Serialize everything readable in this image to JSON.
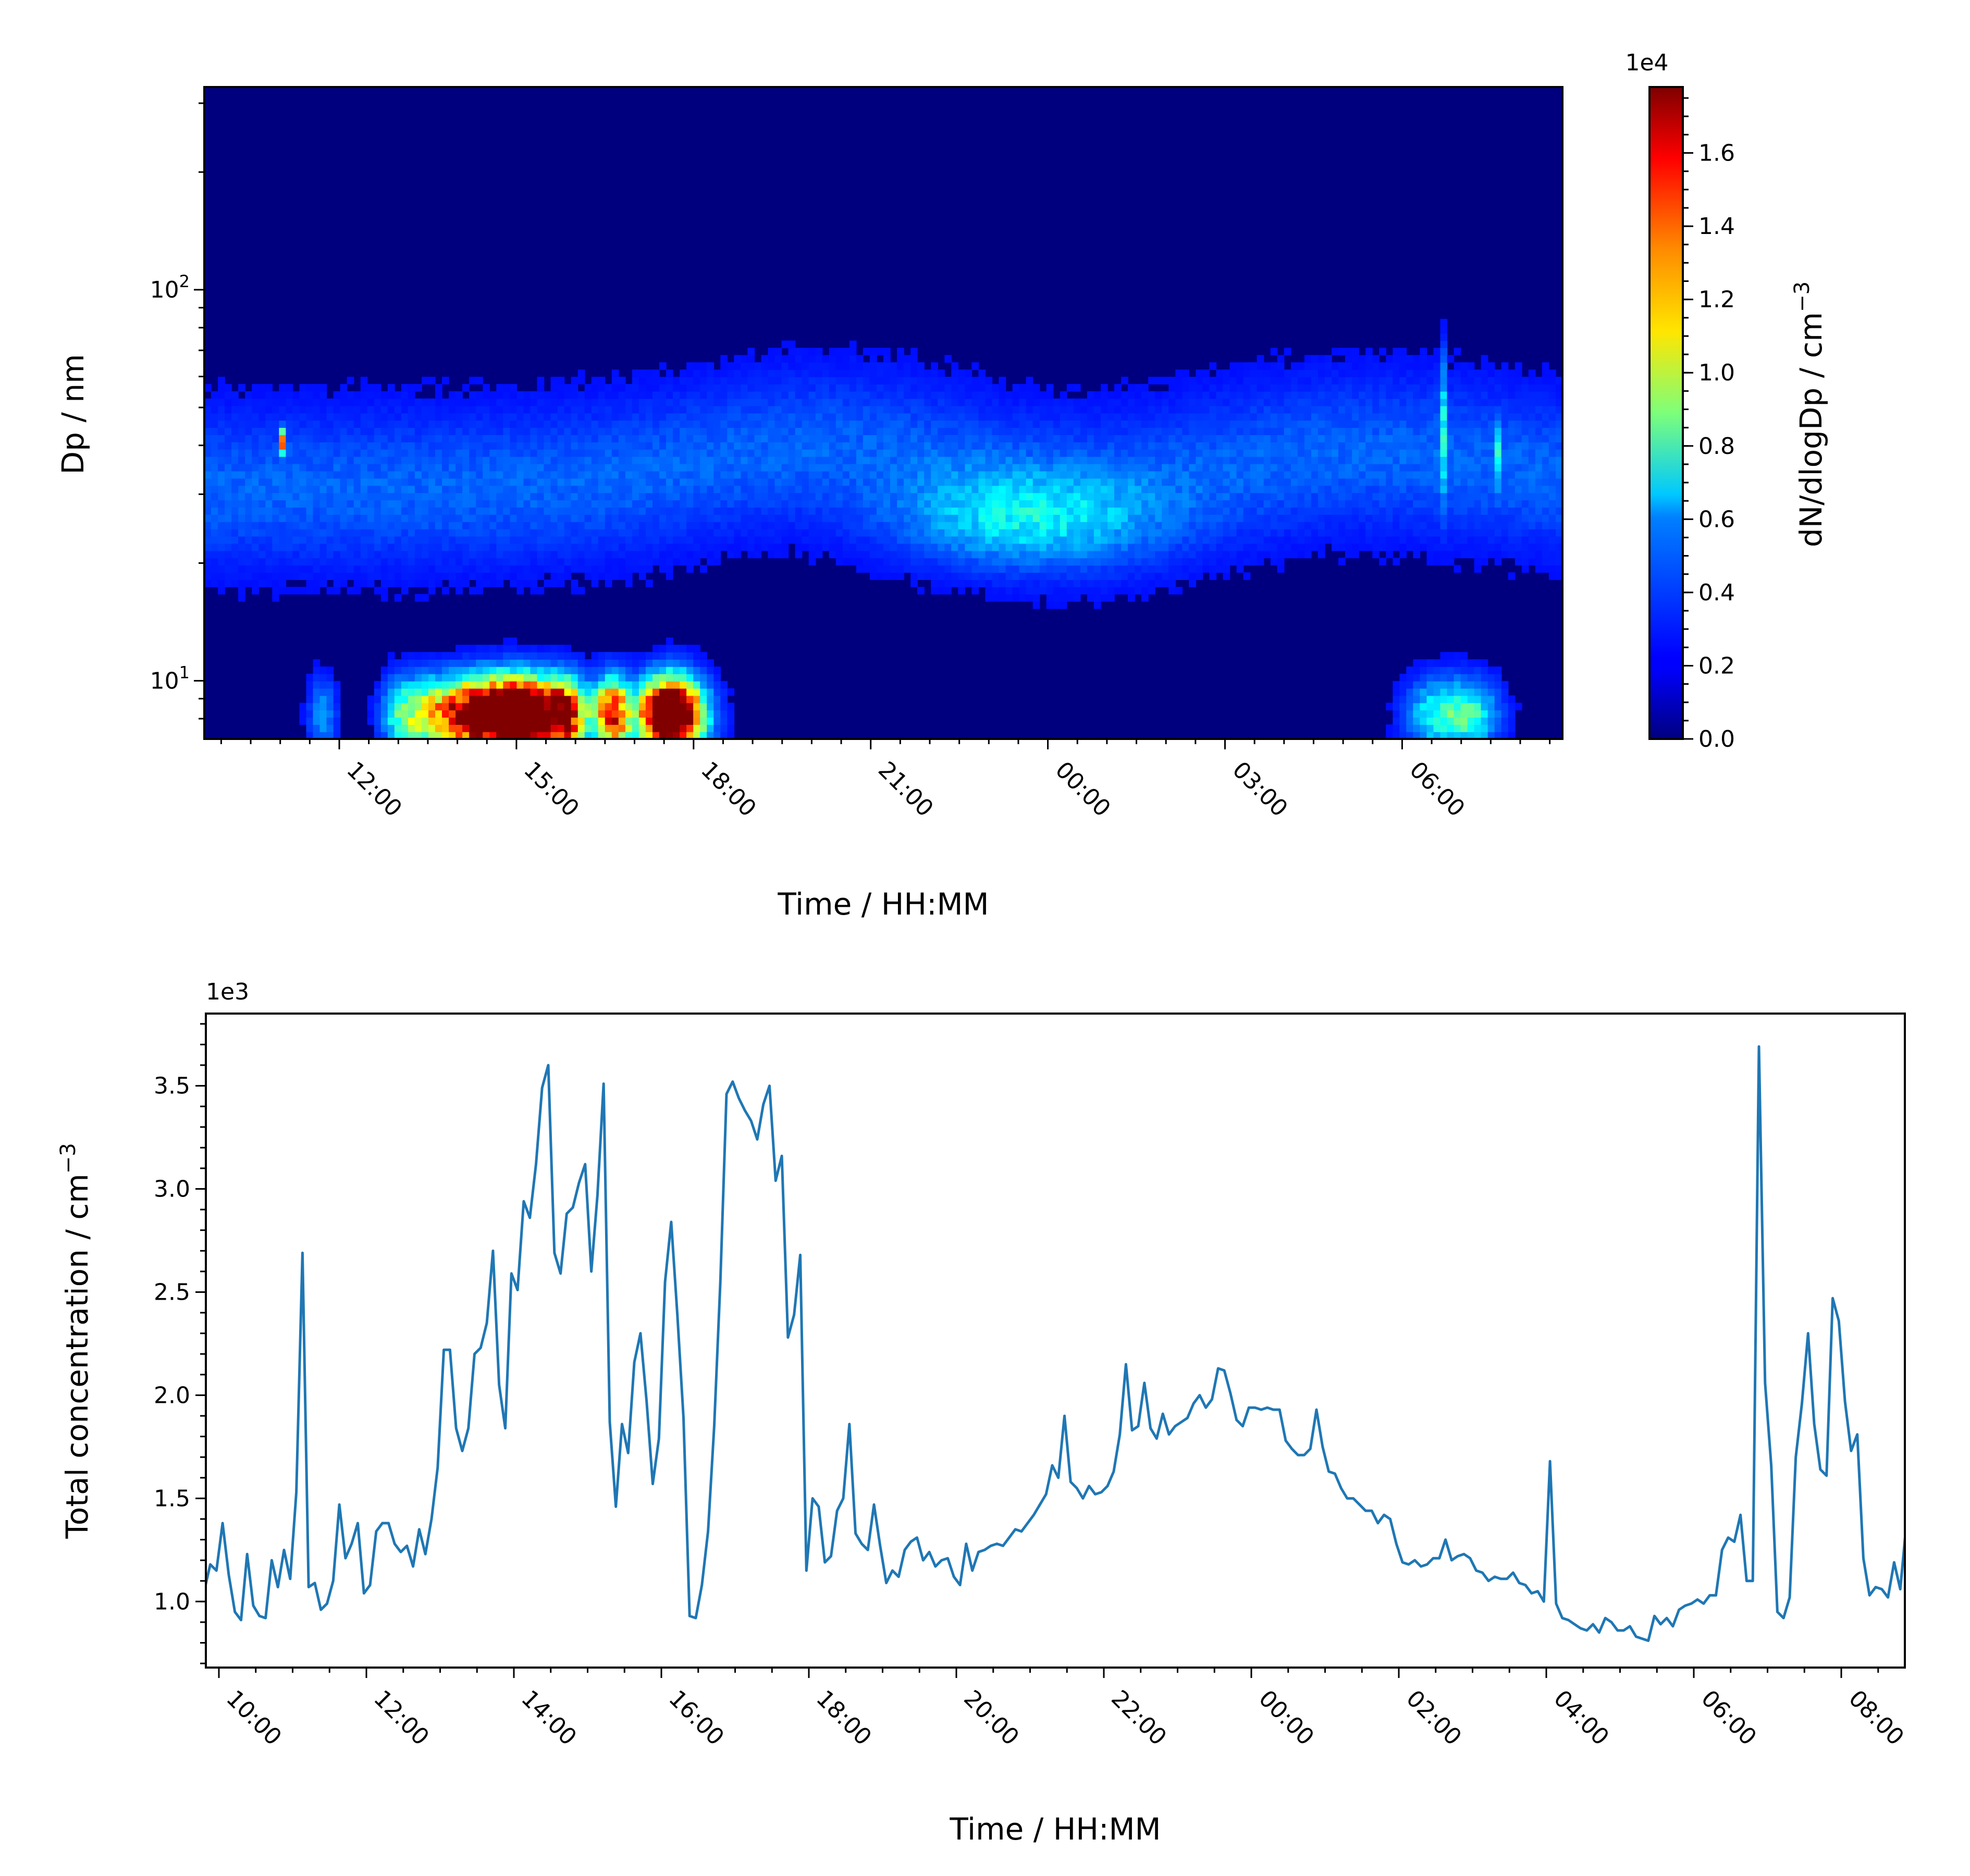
{
  "chart_data": [
    {
      "type": "heatmap",
      "xlabel": "Time / HH:MM",
      "ylabel": "Dp / nm",
      "y_scale": "log",
      "ylim": [
        7.1,
        330
      ],
      "x_tick_labels": [
        "12:00",
        "15:00",
        "18:00",
        "21:00",
        "00:00",
        "03:00",
        "06:00"
      ],
      "y_tick_labels": [
        {
          "base": "10",
          "exp": "1"
        },
        {
          "base": "10",
          "exp": "2"
        }
      ],
      "colorbar": {
        "label": "dN/dlogDp / cm",
        "label_sup": "−3",
        "offset": "1e4",
        "colormap": "jet",
        "range": [
          0,
          1.78
        ],
        "ticks": [
          "0.0",
          "0.2",
          "0.4",
          "0.6",
          "0.8",
          "1.0",
          "1.2",
          "1.4",
          "1.6"
        ]
      },
      "features": [
        {
          "t": "10:30-17:50",
          "dp": "7-12",
          "description": "nucleation-mode bursts",
          "peak": 1.75
        },
        {
          "t": "22:00-01:00",
          "dp": "20-35",
          "peak": 0.45
        },
        {
          "t": "11:05",
          "dp": "38-45",
          "peak": 1.7
        },
        {
          "t": "06:30",
          "dp": "25-60",
          "peak": 0.55
        }
      ]
    },
    {
      "type": "line",
      "xlabel": "Time / HH:MM",
      "ylabel": "Total concentration / cm",
      "ylabel_sup": "−3",
      "y_offset": "1e3",
      "ylim": [
        0.68,
        3.85
      ],
      "x_tick_labels": [
        "10:00",
        "12:00",
        "14:00",
        "16:00",
        "18:00",
        "20:00",
        "22:00",
        "00:00",
        "02:00",
        "04:00",
        "06:00",
        "08:00"
      ],
      "y_tick_labels": [
        "1.0",
        "1.5",
        "2.0",
        "2.5",
        "3.0",
        "3.5"
      ],
      "color": "#1f77b4",
      "series": [
        {
          "x_start": "09:48",
          "x_step_minutes": 5,
          "values": [
            1.05,
            1.18,
            1.15,
            1.38,
            1.13,
            0.95,
            0.91,
            1.23,
            0.98,
            0.93,
            0.92,
            1.2,
            1.07,
            1.25,
            1.11,
            1.53,
            2.69,
            1.07,
            1.09,
            0.96,
            0.99,
            1.1,
            1.47,
            1.21,
            1.28,
            1.38,
            1.04,
            1.08,
            1.34,
            1.38,
            1.38,
            1.28,
            1.24,
            1.27,
            1.17,
            1.35,
            1.23,
            1.4,
            1.65,
            2.22,
            2.22,
            1.84,
            1.73,
            1.84,
            2.2,
            2.23,
            2.35,
            2.7,
            2.05,
            1.84,
            2.59,
            2.51,
            2.94,
            2.86,
            3.12,
            3.49,
            3.6,
            2.69,
            2.59,
            2.88,
            2.91,
            3.03,
            3.12,
            2.6,
            2.97,
            3.51,
            1.87,
            1.46,
            1.86,
            1.72,
            2.16,
            2.3,
            1.97,
            1.57,
            1.79,
            2.55,
            2.84,
            2.39,
            1.89,
            0.93,
            0.92,
            1.08,
            1.34,
            1.85,
            2.55,
            3.46,
            3.52,
            3.44,
            3.38,
            3.33,
            3.24,
            3.41,
            3.5,
            3.04,
            3.16,
            2.28,
            2.39,
            2.68,
            1.15,
            1.5,
            1.46,
            1.19,
            1.22,
            1.44,
            1.5,
            1.86,
            1.33,
            1.28,
            1.25,
            1.47,
            1.27,
            1.09,
            1.15,
            1.12,
            1.25,
            1.29,
            1.31,
            1.2,
            1.24,
            1.17,
            1.2,
            1.21,
            1.12,
            1.08,
            1.28,
            1.15,
            1.24,
            1.25,
            1.27,
            1.28,
            1.27,
            1.31,
            1.35,
            1.34,
            1.38,
            1.42,
            1.47,
            1.52,
            1.66,
            1.6,
            1.9,
            1.58,
            1.55,
            1.5,
            1.56,
            1.52,
            1.53,
            1.56,
            1.63,
            1.81,
            2.15,
            1.83,
            1.85,
            2.06,
            1.84,
            1.79,
            1.91,
            1.81,
            1.85,
            1.87,
            1.89,
            1.96,
            2.0,
            1.94,
            1.98,
            2.13,
            2.12,
            2.01,
            1.88,
            1.85,
            1.94,
            1.94,
            1.93,
            1.94,
            1.93,
            1.93,
            1.78,
            1.74,
            1.71,
            1.71,
            1.74,
            1.93,
            1.75,
            1.63,
            1.62,
            1.55,
            1.5,
            1.5,
            1.47,
            1.44,
            1.44,
            1.38,
            1.42,
            1.4,
            1.28,
            1.19,
            1.18,
            1.2,
            1.17,
            1.18,
            1.21,
            1.21,
            1.3,
            1.2,
            1.22,
            1.23,
            1.21,
            1.15,
            1.14,
            1.1,
            1.12,
            1.11,
            1.11,
            1.14,
            1.09,
            1.08,
            1.04,
            1.05,
            1.0,
            1.68,
            0.99,
            0.92,
            0.91,
            0.89,
            0.87,
            0.86,
            0.89,
            0.85,
            0.92,
            0.9,
            0.86,
            0.86,
            0.88,
            0.83,
            0.82,
            0.81,
            0.93,
            0.89,
            0.92,
            0.88,
            0.96,
            0.98,
            0.99,
            1.01,
            0.99,
            1.03,
            1.03,
            1.25,
            1.31,
            1.29,
            1.42,
            1.1,
            1.1,
            3.69,
            2.06,
            1.66,
            0.95,
            0.92,
            1.02,
            1.7,
            1.96,
            2.3,
            1.86,
            1.64,
            1.61,
            2.47,
            2.36,
            1.97,
            1.73,
            1.81,
            1.21,
            1.03,
            1.07,
            1.06,
            1.02,
            1.19,
            1.06,
            1.38
          ]
        }
      ]
    }
  ]
}
